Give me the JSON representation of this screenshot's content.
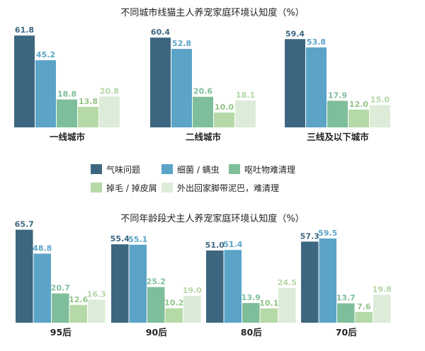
{
  "colors": {
    "series": [
      "#3d6780",
      "#5ba4c8",
      "#7fbe9b",
      "#b5d9a7",
      "#ddecd8"
    ],
    "label_colors": [
      "#3d6780",
      "#5ba4c8",
      "#7fbe9b",
      "#92c487",
      "#b5d6a7"
    ]
  },
  "legend": [
    "气味问题",
    "细菌 / 螨虫",
    "呕吐物难清理",
    "掉毛 / 掉皮屑",
    "外出回家脚带泥巴，难清理"
  ],
  "chart_data": [
    {
      "type": "bar",
      "title": "不同城市线猫主人养宠家庭环境认知度（%）",
      "categories": [
        "一线城市",
        "二线城市",
        "三线及以下城市"
      ],
      "series": [
        {
          "name": "气味问题",
          "values": [
            61.8,
            60.4,
            59.4
          ]
        },
        {
          "name": "细菌 / 螨虫",
          "values": [
            45.2,
            52.8,
            53.8
          ]
        },
        {
          "name": "呕吐物难清理",
          "values": [
            18.8,
            20.6,
            17.9
          ]
        },
        {
          "name": "掉毛 / 掉皮屑",
          "values": [
            13.8,
            10.0,
            12.0
          ]
        },
        {
          "name": "外出回家脚带泥巴，难清理",
          "values": [
            20.8,
            18.1,
            15.0
          ]
        }
      ],
      "ylim": [
        0,
        70
      ],
      "legend_position": "bottom"
    },
    {
      "type": "bar",
      "title": "不同年龄段犬主人养宠家庭环境认知度（%）",
      "categories": [
        "95后",
        "90后",
        "80后",
        "70后"
      ],
      "series": [
        {
          "name": "气味问题",
          "values": [
            65.7,
            55.4,
            51.0,
            57.3
          ]
        },
        {
          "name": "细菌 / 螨虫",
          "values": [
            48.8,
            55.1,
            51.4,
            59.5
          ]
        },
        {
          "name": "呕吐物难清理",
          "values": [
            20.7,
            25.2,
            13.9,
            13.7
          ]
        },
        {
          "name": "掉毛 / 掉皮屑",
          "values": [
            12.6,
            10.2,
            10.1,
            7.6
          ]
        },
        {
          "name": "外出回家脚带泥巴，难清理",
          "values": [
            16.3,
            19.0,
            24.5,
            19.8
          ]
        }
      ],
      "ylim": [
        0,
        70
      ]
    }
  ]
}
